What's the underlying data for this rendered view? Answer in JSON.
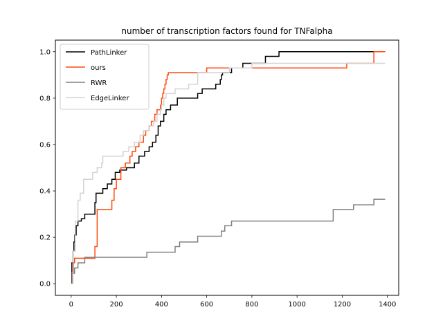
{
  "chart_data": {
    "type": "line",
    "title": "number of transcription factors found for TNFalpha",
    "xlabel": "",
    "ylabel": "",
    "xlim": [
      -70,
      1450
    ],
    "ylim": [
      -0.05,
      1.05
    ],
    "xticks": [
      0,
      200,
      400,
      600,
      800,
      1000,
      1200,
      1400
    ],
    "xtick_labels": [
      "0",
      "200",
      "400",
      "600",
      "800",
      "1000",
      "1200",
      "1400"
    ],
    "yticks": [
      0.0,
      0.2,
      0.4,
      0.6,
      0.8,
      1.0
    ],
    "ytick_labels": [
      "0.0",
      "0.2",
      "0.4",
      "0.6",
      "0.8",
      "1.0"
    ],
    "grid": false,
    "legend_position": "top-left",
    "step": true,
    "series": [
      {
        "name": "PathLinker",
        "color": "#000000",
        "x": [
          0,
          3,
          8,
          12,
          16,
          22,
          30,
          45,
          60,
          105,
          110,
          140,
          160,
          180,
          195,
          215,
          245,
          280,
          300,
          325,
          345,
          360,
          375,
          385,
          395,
          410,
          420,
          440,
          470,
          560,
          580,
          640,
          660,
          665,
          670,
          710,
          760,
          800,
          860,
          920,
          1000,
          1200,
          1390
        ],
        "y": [
          0,
          0.09,
          0.14,
          0.18,
          0.21,
          0.25,
          0.27,
          0.28,
          0.3,
          0.35,
          0.39,
          0.41,
          0.43,
          0.45,
          0.48,
          0.49,
          0.5,
          0.52,
          0.55,
          0.57,
          0.59,
          0.61,
          0.64,
          0.68,
          0.7,
          0.73,
          0.75,
          0.77,
          0.8,
          0.82,
          0.84,
          0.86,
          0.88,
          0.9,
          0.91,
          0.93,
          0.95,
          0.95,
          0.98,
          1.0,
          1.0,
          1.0,
          1.0
        ]
      },
      {
        "name": "ours",
        "color": "#ff4a0d",
        "x": [
          0,
          5,
          10,
          15,
          100,
          105,
          115,
          130,
          180,
          190,
          200,
          220,
          240,
          260,
          270,
          285,
          300,
          320,
          330,
          345,
          355,
          370,
          380,
          395,
          400,
          405,
          410,
          415,
          420,
          425,
          430,
          435,
          600,
          630,
          1000,
          1200,
          1220,
          1335,
          1340,
          1390
        ],
        "y": [
          0,
          0.05,
          0.09,
          0.11,
          0.11,
          0.16,
          0.32,
          0.32,
          0.36,
          0.41,
          0.45,
          0.5,
          0.52,
          0.55,
          0.57,
          0.59,
          0.61,
          0.64,
          0.66,
          0.68,
          0.7,
          0.73,
          0.75,
          0.77,
          0.8,
          0.82,
          0.84,
          0.86,
          0.88,
          0.9,
          0.91,
          0.91,
          0.93,
          0.93,
          0.93,
          0.93,
          0.95,
          0.95,
          1.0,
          1.0
        ],
        "y_end": 1.0
      },
      {
        "name": "RWR",
        "color": "#808080",
        "x": [
          0,
          5,
          15,
          30,
          60,
          335,
          460,
          480,
          560,
          665,
          680,
          700,
          710,
          1160,
          1250,
          1340,
          1390
        ],
        "y": [
          0,
          0.045,
          0.068,
          0.09,
          0.114,
          0.136,
          0.16,
          0.18,
          0.205,
          0.227,
          0.25,
          0.25,
          0.27,
          0.32,
          0.34,
          0.364,
          0.364
        ]
      },
      {
        "name": "EdgeLinker",
        "color": "#d3d3d3",
        "x": [
          0,
          8,
          18,
          30,
          40,
          55,
          70,
          95,
          115,
          135,
          140,
          230,
          255,
          280,
          305,
          320,
          345,
          365,
          380,
          395,
          400,
          410,
          420,
          445,
          460,
          470,
          520,
          560,
          700,
          800,
          1000,
          1390
        ],
        "y": [
          0,
          0.14,
          0.27,
          0.36,
          0.39,
          0.45,
          0.45,
          0.48,
          0.5,
          0.52,
          0.55,
          0.57,
          0.59,
          0.61,
          0.64,
          0.66,
          0.68,
          0.7,
          0.73,
          0.75,
          0.77,
          0.8,
          0.82,
          0.82,
          0.84,
          0.84,
          0.86,
          0.91,
          0.93,
          0.95,
          0.95,
          0.95
        ]
      }
    ]
  }
}
